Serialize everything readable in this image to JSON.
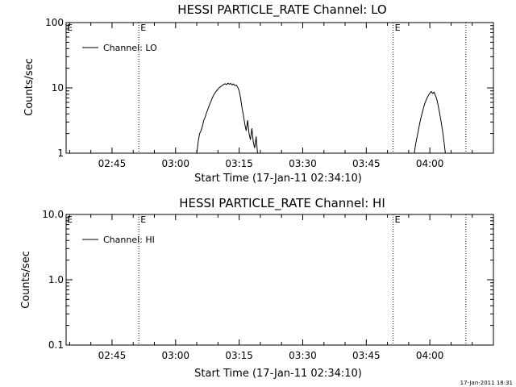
{
  "footer": {
    "stamp": "17-Jan-2011 18:31"
  },
  "chart_data": [
    {
      "type": "line",
      "title": "HESSI PARTICLE_RATE Channel: LO",
      "xlabel": "Start Time (17-Jan-11 02:34:10)",
      "ylabel": "Counts/sec",
      "yscale": "log",
      "ylim": [
        1,
        100
      ],
      "xlim": [
        "02:34:10",
        "04:15:00"
      ],
      "x_ticks": [
        "02:45",
        "03:00",
        "03:15",
        "03:30",
        "03:45",
        "04:00"
      ],
      "y_ticks": [
        "1",
        "10",
        "100"
      ],
      "legend": {
        "position": "top-left",
        "entries": [
          "Channel: LO"
        ]
      },
      "event_markers": [
        {
          "time": "02:51:20",
          "label": "E"
        },
        {
          "time": "03:51:20",
          "label": "E"
        },
        {
          "time": "04:08:30",
          "label": ""
        }
      ],
      "series": [
        {
          "name": "Channel: LO",
          "segments": [
            [
              [
                "03:05:00",
                1.0
              ],
              [
                "03:05:20",
                1.5
              ],
              [
                "03:05:40",
                2.0
              ],
              [
                "03:06:00",
                2.2
              ],
              [
                "03:06:20",
                2.6
              ],
              [
                "03:06:40",
                3.2
              ],
              [
                "03:07:00",
                3.6
              ],
              [
                "03:07:20",
                4.2
              ],
              [
                "03:07:40",
                4.8
              ],
              [
                "03:08:00",
                5.5
              ],
              [
                "03:08:20",
                6.2
              ],
              [
                "03:08:40",
                7.0
              ],
              [
                "03:09:00",
                7.8
              ],
              [
                "03:09:20",
                8.4
              ],
              [
                "03:09:40",
                9.0
              ],
              [
                "03:10:00",
                9.6
              ],
              [
                "03:10:20",
                10.1
              ],
              [
                "03:10:40",
                10.5
              ],
              [
                "03:11:00",
                10.9
              ],
              [
                "03:11:20",
                11.3
              ],
              [
                "03:11:40",
                11.6
              ],
              [
                "03:12:00",
                11.2
              ],
              [
                "03:12:20",
                11.8
              ],
              [
                "03:12:40",
                11.4
              ],
              [
                "03:13:00",
                11.7
              ],
              [
                "03:13:20",
                11.1
              ],
              [
                "03:13:40",
                11.5
              ],
              [
                "03:14:00",
                10.8
              ],
              [
                "03:14:20",
                11.0
              ],
              [
                "03:14:40",
                10.2
              ],
              [
                "03:15:00",
                9.0
              ],
              [
                "03:15:20",
                7.0
              ],
              [
                "03:15:40",
                5.0
              ],
              [
                "03:16:00",
                3.8
              ],
              [
                "03:16:20",
                2.8
              ],
              [
                "03:16:40",
                2.2
              ],
              [
                "03:17:00",
                3.2
              ],
              [
                "03:17:20",
                2.0
              ],
              [
                "03:17:40",
                1.6
              ],
              [
                "03:18:00",
                2.4
              ],
              [
                "03:18:20",
                1.5
              ],
              [
                "03:18:40",
                1.2
              ],
              [
                "03:19:00",
                1.8
              ],
              [
                "03:19:20",
                1.0
              ]
            ],
            [
              [
                "03:56:20",
                1.0
              ],
              [
                "03:56:40",
                1.4
              ],
              [
                "03:57:00",
                1.8
              ],
              [
                "03:57:20",
                2.3
              ],
              [
                "03:57:40",
                3.0
              ],
              [
                "03:58:00",
                3.7
              ],
              [
                "03:58:20",
                4.5
              ],
              [
                "03:58:40",
                5.4
              ],
              [
                "03:59:00",
                6.2
              ],
              [
                "03:59:20",
                7.0
              ],
              [
                "03:59:40",
                7.7
              ],
              [
                "04:00:00",
                8.3
              ],
              [
                "04:00:20",
                8.8
              ],
              [
                "04:00:40",
                8.2
              ],
              [
                "04:01:00",
                8.6
              ],
              [
                "04:01:20",
                7.6
              ],
              [
                "04:01:40",
                6.6
              ],
              [
                "04:02:00",
                5.2
              ],
              [
                "04:02:20",
                4.0
              ],
              [
                "04:02:40",
                3.0
              ],
              [
                "04:03:00",
                2.2
              ],
              [
                "04:03:20",
                1.5
              ],
              [
                "04:03:40",
                1.0
              ]
            ]
          ]
        }
      ]
    },
    {
      "type": "line",
      "title": "HESSI PARTICLE_RATE Channel: HI",
      "xlabel": "Start Time (17-Jan-11 02:34:10)",
      "ylabel": "Counts/sec",
      "yscale": "log",
      "ylim": [
        0.1,
        10
      ],
      "xlim": [
        "02:34:10",
        "04:15:00"
      ],
      "x_ticks": [
        "02:45",
        "03:00",
        "03:15",
        "03:30",
        "03:45",
        "04:00"
      ],
      "y_ticks": [
        "0.1",
        "1.0",
        "10.0"
      ],
      "legend": {
        "position": "top-left",
        "entries": [
          "Channel: HI"
        ]
      },
      "event_markers": [
        {
          "time": "02:51:20",
          "label": "E"
        },
        {
          "time": "03:51:20",
          "label": "E"
        },
        {
          "time": "04:08:30",
          "label": ""
        }
      ],
      "series": [
        {
          "name": "Channel: HI",
          "segments": []
        }
      ]
    }
  ]
}
